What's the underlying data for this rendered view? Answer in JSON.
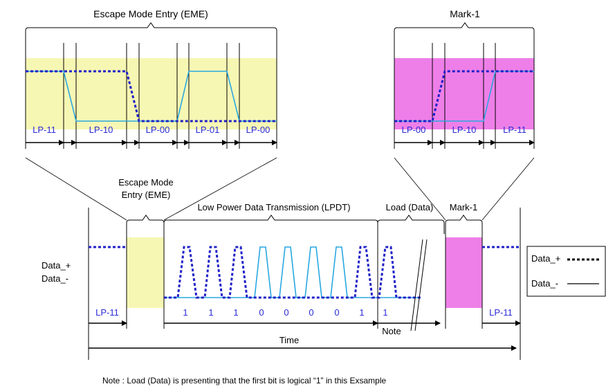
{
  "titles": {
    "eme_zoom": "Escape Mode Entry (EME)",
    "mark_zoom": "Mark-1",
    "eme_line1": "Escape Mode",
    "eme_line2": "Entry (EME)",
    "lpdt": "Low Power Data Transmission (LPDT)",
    "load": "Load (Data)",
    "mark": "Mark-1"
  },
  "eme_states": [
    "LP-11",
    "LP-10",
    "LP-00",
    "LP-01",
    "LP-00"
  ],
  "mark_states": [
    "LP-00",
    "LP-10",
    "LP-11"
  ],
  "main_states": {
    "start": "LP-11",
    "end": "LP-11"
  },
  "bits": [
    "1",
    "1",
    "1",
    "0",
    "0",
    "0",
    "0",
    "1",
    "1"
  ],
  "signal_labels": {
    "plus": "Data_+",
    "minus": "Data_-"
  },
  "legend": {
    "plus": "Data_+",
    "minus": "Data_-"
  },
  "time_label": "Time",
  "note_label": "Note",
  "note_text": "Note : Load (Data) is presenting that the first bit is logical  “1”  in this Exsample",
  "colors": {
    "eme_fill": "#f7f7b4",
    "mark_fill": "#ee7fe8",
    "data_plus": "#2020c8",
    "data_minus": "#29a7e0",
    "state_text": "#2b2bd6"
  }
}
